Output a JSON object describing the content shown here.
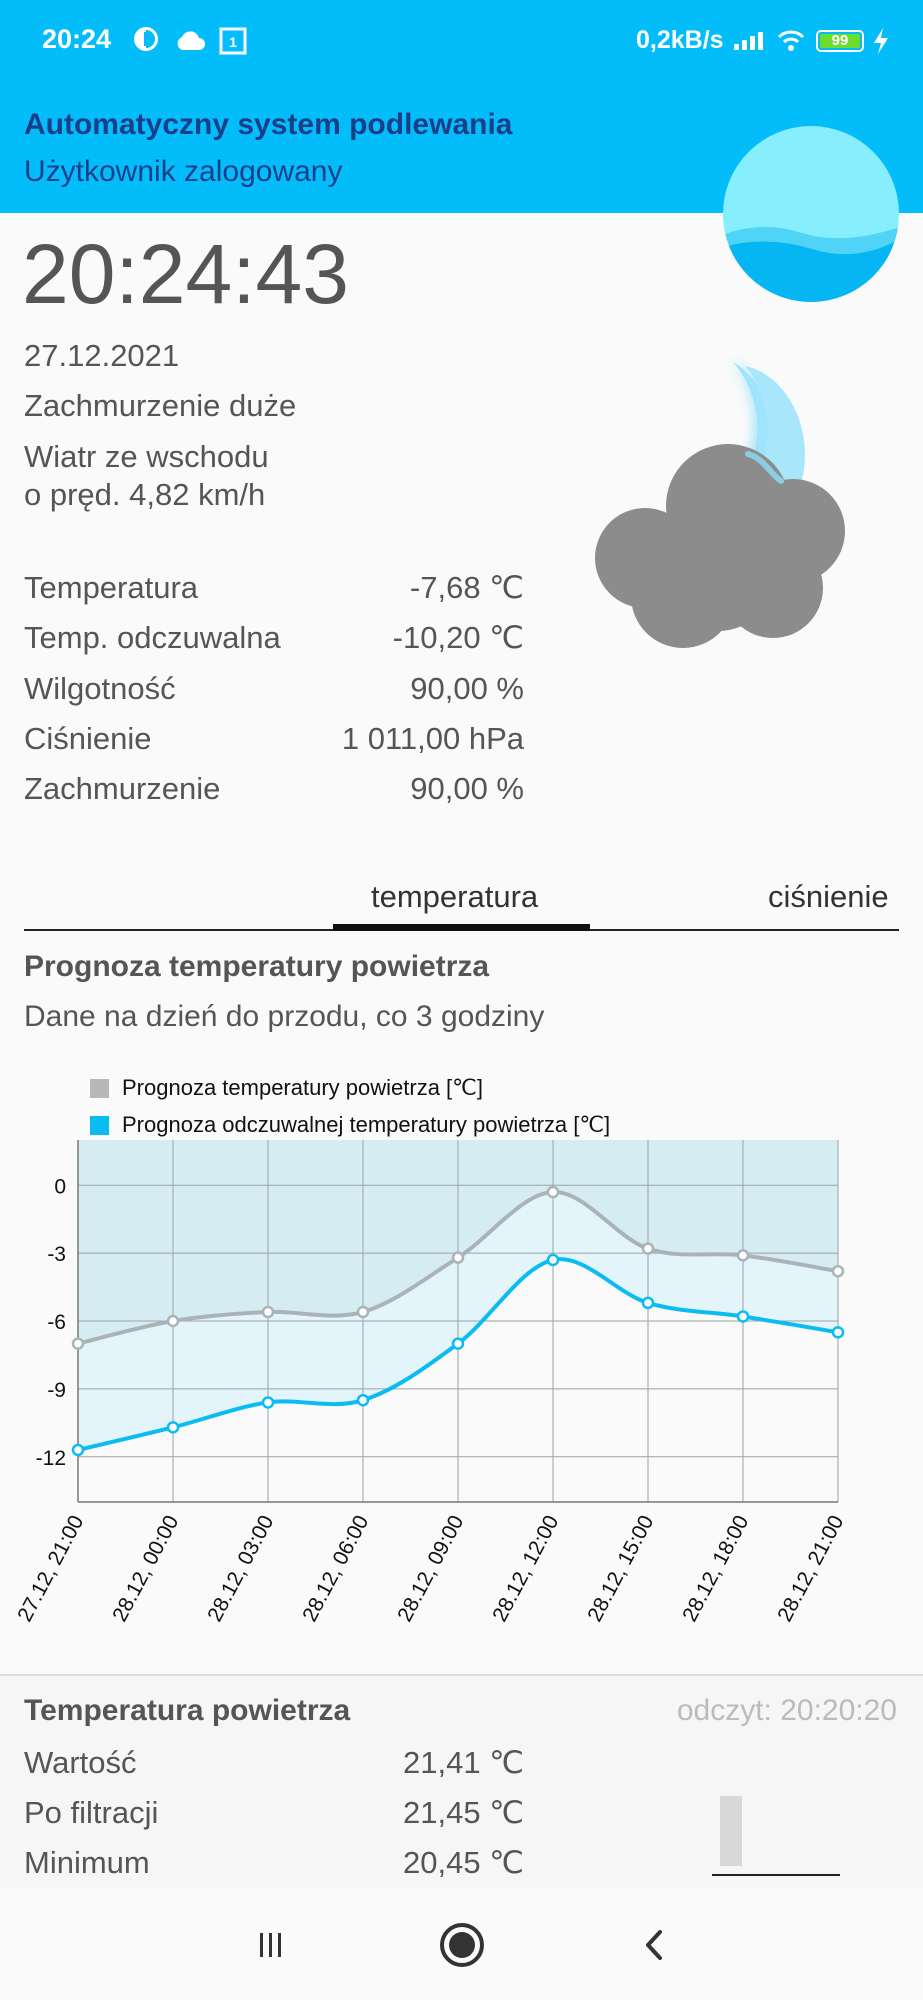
{
  "status_bar": {
    "time": "20:24",
    "net_speed": "0,2kB/s",
    "battery_level": "99",
    "icons": [
      "app-indicator-icon",
      "cloud-icon",
      "sim-1-icon",
      "signal-icon",
      "wifi-icon",
      "battery-icon",
      "charging-icon"
    ]
  },
  "app": {
    "title": "Automatyczny system podlewania",
    "subtitle": "Użytkownik zalogowany"
  },
  "weather": {
    "clock": "20:24:43",
    "date": "27.12.2021",
    "condition": "Zachmurzenie duże",
    "wind_line1": "Wiatr ze wschodu",
    "wind_line2": "o pręd. 4,82 km/h",
    "rows": [
      {
        "label": "Temperatura",
        "value": "-7,68 ℃"
      },
      {
        "label": "Temp. odczuwalna",
        "value": "-10,20 ℃"
      },
      {
        "label": "Wilgotność",
        "value": "90,00 %"
      },
      {
        "label": "Ciśnienie",
        "value": "1 011,00 hPa"
      },
      {
        "label": "Zachmurzenie",
        "value": "90,00 %"
      }
    ],
    "icon": "cloud-moon-icon"
  },
  "tabs": [
    {
      "label": "temperatura",
      "active": true
    },
    {
      "label": "ciśnienie",
      "active": false
    }
  ],
  "forecast": {
    "title": "Prognoza temperatury powietrza",
    "subtitle": "Dane na dzień do przodu, co 3 godziny"
  },
  "chart_data": {
    "type": "line",
    "x": [
      "27.12, 21:00",
      "28.12, 00:00",
      "28.12, 03:00",
      "28.12, 06:00",
      "28.12, 09:00",
      "28.12, 12:00",
      "28.12, 15:00",
      "28.12, 18:00",
      "28.12, 21:00"
    ],
    "yticks": [
      0,
      -3,
      -6,
      -9,
      -12
    ],
    "ylim": [
      -14,
      2
    ],
    "grid": true,
    "legend_position": "top-left",
    "series": [
      {
        "name": "Prognoza temperatury powietrza [℃]",
        "color": "#aab4b8",
        "values": [
          -7.0,
          -6.0,
          -5.6,
          -5.6,
          -3.2,
          -0.3,
          -2.8,
          -3.1,
          -3.8
        ]
      },
      {
        "name": "Prognoza odczuwalnej temperatury powietrza [℃]",
        "color": "#0bbcf2",
        "values": [
          -11.7,
          -10.7,
          -9.6,
          -9.5,
          -7.0,
          -3.3,
          -5.2,
          -5.8,
          -6.5
        ]
      }
    ]
  },
  "sensor": {
    "title": "Temperatura powietrza",
    "read_time": "odczyt: 20:20:20",
    "rows": [
      {
        "label": "Wartość",
        "value": "21,41 ℃"
      },
      {
        "label": "Po filtracji",
        "value": "21,45 ℃"
      },
      {
        "label": "Minimum",
        "value": "20,45 ℃"
      }
    ]
  },
  "colors": {
    "app_bar": "#03bdfb",
    "title_text": "#1a3f8a",
    "series_gray": "#aab4b8",
    "series_blue": "#0bbcf2"
  }
}
